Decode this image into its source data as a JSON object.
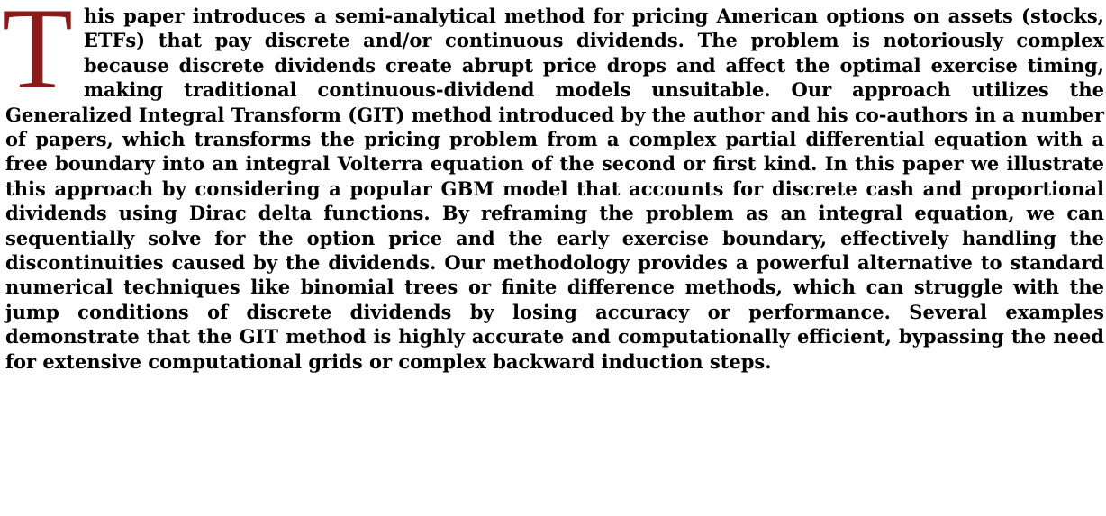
{
  "abstract": {
    "dropcap": "T",
    "dropcap_color": "#8b1a1a",
    "text": "his paper introduces a semi-analytical method for pricing American options on assets (stocks, ETFs) that pay discrete and/or continuous dividends. The prob­lem is notoriously complex because discrete dividends create abrupt price drops and affect the optimal exercise timing, making traditional continuous-dividend models unsuitable. Our approach utilizes the Generalized Integral Transform (GIT) method in­troduced by the author and his co-authors in a number of papers, which transforms the pricing problem from a complex partial differential equation with a free boundary into an integral Volterra equation of the second or first kind. In this paper we illustrate this approach by considering a popular GBM model that accounts for discrete cash and pro­portional dividends using Dirac delta functions. By reframing the problem as an integral equation, we can sequentially solve for the option price and the early exercise bound­ary, effectively handling the discontinuities caused by the dividends. Our methodology provides a powerful alternative to standard numerical techniques like binomial trees or finite difference methods, which can struggle with the jump conditions of discrete divi­dends by losing accuracy or performance. Several examples demonstrate that the GIT method is highly accurate and computationally efficient, bypassing the need for extensive computational grids or complex backward induction steps."
  }
}
